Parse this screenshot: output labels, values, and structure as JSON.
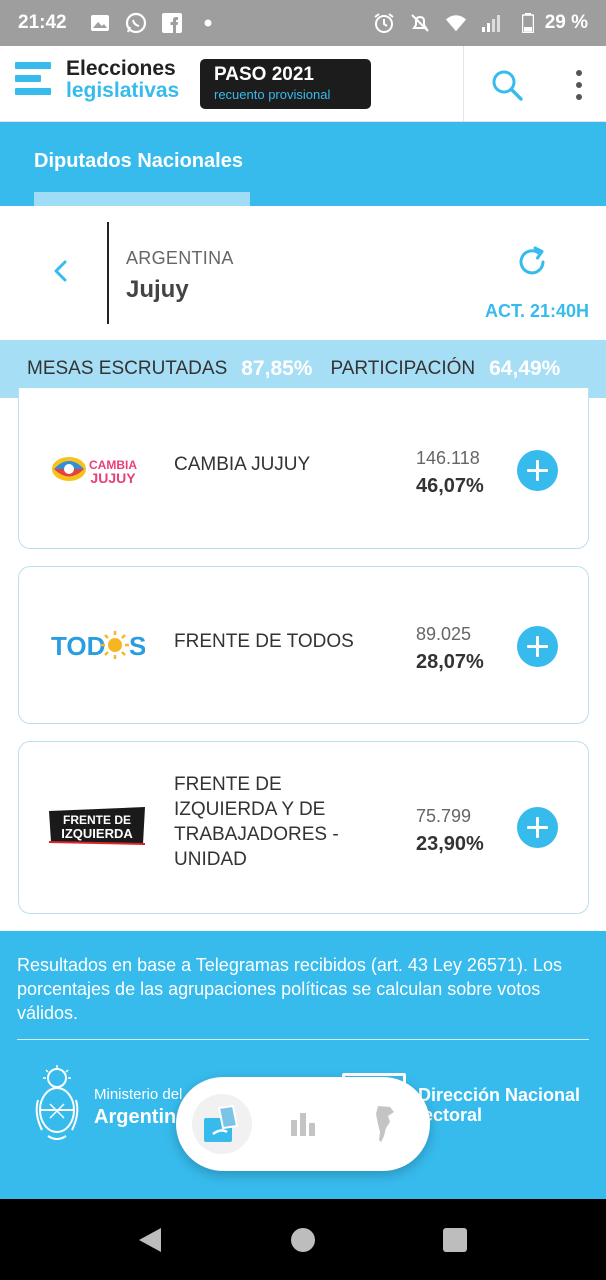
{
  "status_bar": {
    "time": "21:42",
    "battery": "29 %",
    "icons": [
      "image-icon",
      "whatsapp-icon",
      "facebook-icon",
      "dot-icon",
      "alarm-icon",
      "mute-icon",
      "wifi-icon",
      "signal-icon",
      "battery-icon"
    ]
  },
  "header": {
    "logo_line1": "Elecciones",
    "logo_line2": "legislativas",
    "badge_title": "PASO 2021",
    "badge_subtitle": "recuento provisional",
    "icons": [
      "search-icon",
      "more-vert-icon"
    ]
  },
  "tabs": {
    "active_label": "Diputados Nacionales"
  },
  "location": {
    "country": "ARGENTINA",
    "province": "Jujuy",
    "updated": "ACT. 21:40H"
  },
  "stats": {
    "mesas_label": "MESAS ESCRUTADAS",
    "mesas_value": "87,85%",
    "participacion_label": "PARTICIPACIÓN",
    "participacion_value": "64,49%"
  },
  "results": [
    {
      "party": "CAMBIA JUJUY",
      "votes": "146.118",
      "percent": "46,07%",
      "logo_text": "CAMBIA JUJUY"
    },
    {
      "party": "FRENTE DE TODOS",
      "votes": "89.025",
      "percent": "28,07%",
      "logo_text": "TODOS"
    },
    {
      "party": "FRENTE DE IZQUIERDA Y DE TRABAJADORES - UNIDAD",
      "votes": "75.799",
      "percent": "23,90%",
      "logo_text": "FRENTE DE IZQUIERDA"
    }
  ],
  "footer": {
    "note": "Resultados en base a Telegramas recibidos (art. 43 Ley 26571). Los porcentajes de las agrupaciones políticas se calculan sobre votos válidos.",
    "ministry_line1": "Ministerio del",
    "ministry_line2": "Argentin",
    "dne_line1": "Dirección Nacional",
    "dne_line2": "lectoral"
  },
  "colors": {
    "accent": "#37bbed",
    "accent_light": "#a6def5",
    "dark": "#1c1c1c"
  }
}
